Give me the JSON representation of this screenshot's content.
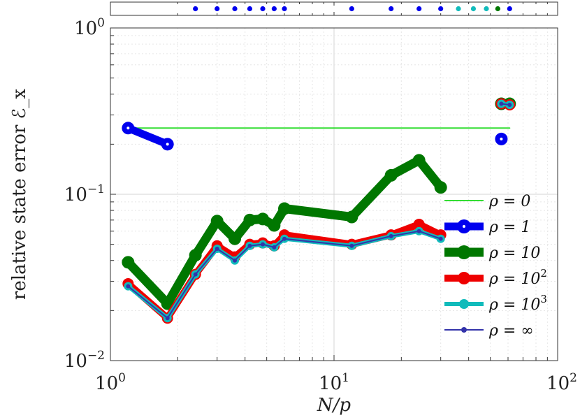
{
  "chart_data": {
    "type": "line",
    "xscale": "log",
    "yscale": "log",
    "xlim": [
      1,
      100
    ],
    "ylim": [
      0.01,
      1
    ],
    "grid": true,
    "xlabel": "N/p",
    "ylabel": "relative state error ℰ_x",
    "xticks": [
      {
        "value": 1,
        "base": "10",
        "exp": "0"
      },
      {
        "value": 10,
        "base": "10",
        "exp": "1"
      },
      {
        "value": 100,
        "base": "10",
        "exp": "2"
      }
    ],
    "yticks": [
      {
        "value": 0.01,
        "base": "10",
        "exp": "−2"
      },
      {
        "value": 0.1,
        "base": "10",
        "exp": "−1"
      },
      {
        "value": 1,
        "base": "10",
        "exp": "0"
      }
    ],
    "legend_position": "right",
    "series": [
      {
        "name": "ρ = 0",
        "color": "#33dd33",
        "x": [
          1.2,
          61
        ],
        "y": [
          0.25,
          0.25
        ]
      },
      {
        "name": "ρ = 1",
        "color": "#0000ee",
        "x": [
          1.2,
          1.8,
          56
        ],
        "y": [
          0.25,
          0.2,
          0.215
        ],
        "segments": [
          [
            0,
            1
          ],
          [
            2,
            2
          ]
        ]
      },
      {
        "name": "ρ = 10",
        "color": "#007700",
        "x": [
          1.2,
          1.8,
          2.4,
          3.0,
          3.6,
          4.2,
          4.8,
          5.4,
          6.0,
          12.0,
          18.0,
          24.0,
          30.0,
          56.0,
          61.0
        ],
        "y": [
          0.039,
          0.022,
          0.043,
          0.069,
          0.054,
          0.07,
          0.071,
          0.065,
          0.082,
          0.073,
          0.13,
          0.16,
          0.11,
          0.35,
          0.35
        ],
        "segments": [
          [
            0,
            12
          ],
          [
            13,
            14
          ]
        ]
      },
      {
        "name": "ρ = 10^2",
        "color": "#ee0000",
        "x": [
          1.2,
          1.8,
          2.4,
          3.0,
          3.6,
          4.2,
          4.8,
          5.4,
          6.0,
          12.0,
          18.0,
          24.0,
          30.0,
          56.0,
          61.0
        ],
        "y": [
          0.029,
          0.018,
          0.033,
          0.049,
          0.042,
          0.05,
          0.051,
          0.049,
          0.057,
          0.05,
          0.057,
          0.066,
          0.057,
          0.35,
          0.345
        ],
        "segments": [
          [
            0,
            12
          ],
          [
            13,
            14
          ]
        ]
      },
      {
        "name": "ρ = 10^3",
        "color": "#11bbbb",
        "x": [
          1.2,
          1.8,
          2.4,
          3.0,
          3.6,
          4.2,
          4.8,
          5.4,
          6.0,
          12.0,
          18.0,
          24.0,
          30.0,
          56.0,
          61.0
        ],
        "y": [
          0.028,
          0.018,
          0.033,
          0.047,
          0.04,
          0.049,
          0.05,
          0.048,
          0.054,
          0.049,
          0.056,
          0.06,
          0.054,
          0.35,
          0.345
        ],
        "segments": [
          [
            0,
            12
          ],
          [
            13,
            14
          ]
        ]
      },
      {
        "name": "ρ = ∞",
        "color": "#3333aa",
        "x": [
          1.2,
          1.8,
          2.4,
          3.0,
          3.6,
          4.2,
          4.8,
          5.4,
          6.0,
          12.0,
          18.0,
          24.0,
          30.0,
          56.0,
          61.0
        ],
        "y": [
          0.028,
          0.018,
          0.033,
          0.047,
          0.04,
          0.049,
          0.05,
          0.048,
          0.054,
          0.049,
          0.056,
          0.06,
          0.054,
          0.35,
          0.345
        ],
        "segments": [
          [
            0,
            12
          ],
          [
            13,
            14
          ]
        ]
      }
    ],
    "strip": {
      "markers": [
        {
          "x": 2.4,
          "color": "#0000ee"
        },
        {
          "x": 3.0,
          "color": "#0000ee"
        },
        {
          "x": 3.6,
          "color": "#0000ee"
        },
        {
          "x": 4.2,
          "color": "#0000ee"
        },
        {
          "x": 4.8,
          "color": "#0000ee"
        },
        {
          "x": 5.4,
          "color": "#0000ee"
        },
        {
          "x": 6.0,
          "color": "#0000ee"
        },
        {
          "x": 12.0,
          "color": "#0000ee"
        },
        {
          "x": 18.0,
          "color": "#0000ee"
        },
        {
          "x": 24.0,
          "color": "#0000ee"
        },
        {
          "x": 30.0,
          "color": "#0000ee"
        },
        {
          "x": 36.0,
          "color": "#11bbbb"
        },
        {
          "x": 42.0,
          "color": "#11bbbb"
        },
        {
          "x": 48.0,
          "color": "#11bbbb"
        },
        {
          "x": 54.0,
          "color": "#007700"
        },
        {
          "x": 61.0,
          "color": "#0000ee"
        }
      ]
    }
  }
}
